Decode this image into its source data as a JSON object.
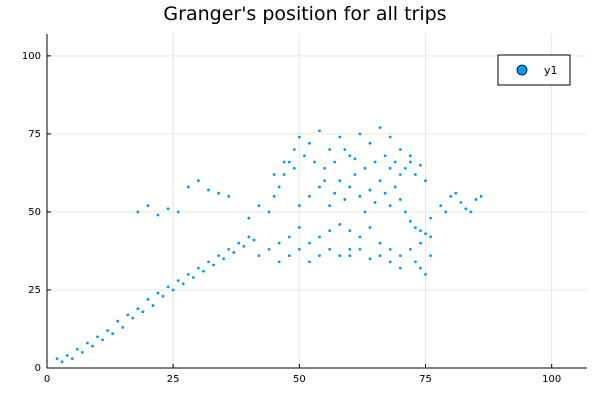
{
  "chart_data": {
    "type": "scatter",
    "title": "Granger's position for all trips",
    "xlabel": "",
    "ylabel": "",
    "xlim": [
      0,
      107
    ],
    "ylim": [
      0,
      107
    ],
    "xticks": [
      0,
      25,
      50,
      75,
      100
    ],
    "yticks": [
      0,
      25,
      50,
      75,
      100
    ],
    "xtick_labels": [
      "0",
      "25",
      "50",
      "75",
      "100"
    ],
    "ytick_labels": [
      "0",
      "25",
      "50",
      "75",
      "100"
    ],
    "grid": true,
    "legend_position": "top-right",
    "series": [
      {
        "name": "y1",
        "color": "#009af9",
        "points": [
          [
            2,
            3
          ],
          [
            3,
            2
          ],
          [
            4,
            4
          ],
          [
            5,
            3
          ],
          [
            6,
            6
          ],
          [
            7,
            5
          ],
          [
            8,
            8
          ],
          [
            9,
            7
          ],
          [
            10,
            10
          ],
          [
            11,
            9
          ],
          [
            12,
            12
          ],
          [
            13,
            11
          ],
          [
            14,
            15
          ],
          [
            15,
            13
          ],
          [
            16,
            17
          ],
          [
            17,
            16
          ],
          [
            18,
            19
          ],
          [
            19,
            18
          ],
          [
            20,
            22
          ],
          [
            21,
            20
          ],
          [
            22,
            24
          ],
          [
            23,
            23
          ],
          [
            24,
            26
          ],
          [
            25,
            25
          ],
          [
            26,
            28
          ],
          [
            27,
            27
          ],
          [
            28,
            30
          ],
          [
            29,
            29
          ],
          [
            30,
            32
          ],
          [
            31,
            31
          ],
          [
            32,
            34
          ],
          [
            33,
            33
          ],
          [
            34,
            36
          ],
          [
            35,
            35
          ],
          [
            36,
            38
          ],
          [
            37,
            37
          ],
          [
            38,
            40
          ],
          [
            39,
            39
          ],
          [
            40,
            42
          ],
          [
            41,
            41
          ],
          [
            18,
            50
          ],
          [
            20,
            52
          ],
          [
            22,
            49
          ],
          [
            24,
            51
          ],
          [
            26,
            50
          ],
          [
            28,
            58
          ],
          [
            30,
            60
          ],
          [
            32,
            57
          ],
          [
            34,
            56
          ],
          [
            36,
            55
          ],
          [
            40,
            48
          ],
          [
            42,
            52
          ],
          [
            44,
            50
          ],
          [
            45,
            55
          ],
          [
            46,
            58
          ],
          [
            47,
            62
          ],
          [
            48,
            66
          ],
          [
            49,
            70
          ],
          [
            50,
            74
          ],
          [
            52,
            72
          ],
          [
            54,
            76
          ],
          [
            56,
            70
          ],
          [
            58,
            74
          ],
          [
            60,
            68
          ],
          [
            62,
            75
          ],
          [
            64,
            72
          ],
          [
            66,
            77
          ],
          [
            68,
            74
          ],
          [
            70,
            70
          ],
          [
            72,
            68
          ],
          [
            50,
            52
          ],
          [
            52,
            55
          ],
          [
            54,
            58
          ],
          [
            55,
            60
          ],
          [
            56,
            52
          ],
          [
            57,
            56
          ],
          [
            58,
            60
          ],
          [
            59,
            54
          ],
          [
            60,
            58
          ],
          [
            61,
            62
          ],
          [
            62,
            55
          ],
          [
            63,
            50
          ],
          [
            64,
            57
          ],
          [
            65,
            53
          ],
          [
            66,
            60
          ],
          [
            67,
            56
          ],
          [
            68,
            52
          ],
          [
            69,
            58
          ],
          [
            70,
            54
          ],
          [
            71,
            50
          ],
          [
            72,
            47
          ],
          [
            73,
            45
          ],
          [
            74,
            44
          ],
          [
            75,
            43
          ],
          [
            76,
            42
          ],
          [
            74,
            40
          ],
          [
            72,
            38
          ],
          [
            70,
            36
          ],
          [
            68,
            38
          ],
          [
            66,
            40
          ],
          [
            50,
            45
          ],
          [
            48,
            42
          ],
          [
            46,
            40
          ],
          [
            44,
            38
          ],
          [
            42,
            36
          ],
          [
            52,
            40
          ],
          [
            54,
            42
          ],
          [
            56,
            44
          ],
          [
            58,
            46
          ],
          [
            60,
            44
          ],
          [
            62,
            42
          ],
          [
            64,
            45
          ],
          [
            60,
            38
          ],
          [
            58,
            36
          ],
          [
            56,
            38
          ],
          [
            54,
            36
          ],
          [
            52,
            34
          ],
          [
            50,
            38
          ],
          [
            48,
            36
          ],
          [
            46,
            34
          ],
          [
            76,
            48
          ],
          [
            78,
            52
          ],
          [
            80,
            55
          ],
          [
            82,
            53
          ],
          [
            84,
            50
          ],
          [
            85,
            54
          ],
          [
            86,
            55
          ],
          [
            83,
            51
          ],
          [
            81,
            56
          ],
          [
            79,
            50
          ],
          [
            76,
            36
          ],
          [
            74,
            32
          ],
          [
            75,
            30
          ],
          [
            73,
            34
          ],
          [
            70,
            32
          ],
          [
            68,
            34
          ],
          [
            66,
            36
          ],
          [
            64,
            35
          ],
          [
            62,
            38
          ],
          [
            60,
            36
          ],
          [
            45,
            62
          ],
          [
            47,
            66
          ],
          [
            49,
            64
          ],
          [
            51,
            68
          ],
          [
            53,
            66
          ],
          [
            55,
            64
          ],
          [
            57,
            66
          ],
          [
            59,
            70
          ],
          [
            61,
            67
          ],
          [
            63,
            64
          ],
          [
            65,
            66
          ],
          [
            67,
            68
          ],
          [
            69,
            66
          ],
          [
            71,
            64
          ],
          [
            73,
            62
          ],
          [
            75,
            60
          ],
          [
            74,
            65
          ],
          [
            72,
            66
          ],
          [
            70,
            62
          ],
          [
            68,
            64
          ]
        ]
      }
    ]
  }
}
